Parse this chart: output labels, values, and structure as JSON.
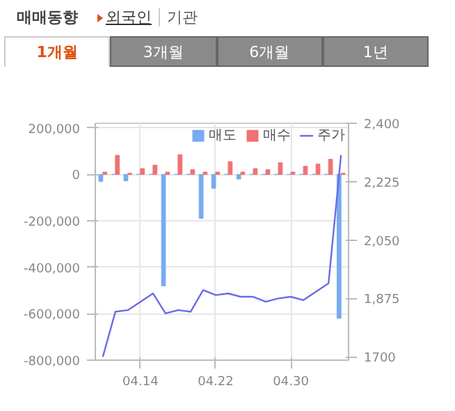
{
  "chart_data": {
    "type": "bar",
    "title": "매매동향",
    "annotations": [
      "외국인",
      "기관",
      "1개월",
      "3개월",
      "6개월",
      "1년"
    ],
    "categories": [
      null,
      null,
      null,
      "04.14",
      null,
      null,
      null,
      null,
      null,
      "04.22",
      null,
      null,
      null,
      null,
      null,
      "04.30",
      null,
      null,
      null,
      null
    ],
    "series": [
      {
        "name": "매도",
        "color": "#78aaf0",
        "values": [
          -30000,
          0,
          -28000,
          0,
          0,
          -480000,
          0,
          0,
          -190000,
          -60000,
          0,
          -20000,
          0,
          0,
          0,
          0,
          0,
          0,
          0,
          -620000
        ]
      },
      {
        "name": "매수",
        "color": "#f07272",
        "values": [
          10000,
          82000,
          5000,
          25000,
          40000,
          10000,
          85000,
          20000,
          10000,
          10000,
          55000,
          10000,
          25000,
          20000,
          50000,
          10000,
          35000,
          45000,
          65000,
          5000
        ]
      },
      {
        "name": "주가",
        "type": "line",
        "axis": "y2",
        "color": "#6b6be6",
        "values": [
          1700,
          1835,
          1840,
          1865,
          1890,
          1830,
          1840,
          1835,
          1900,
          1885,
          1890,
          1880,
          1880,
          1865,
          1875,
          1880,
          1870,
          1895,
          1920,
          2305
        ]
      }
    ],
    "ylim": [
      -800000,
      220000
    ],
    "yticks": [
      {
        "value": -800000,
        "label": "-800,000"
      },
      {
        "value": -600000,
        "label": "-600,000"
      },
      {
        "value": -400000,
        "label": "-400,000"
      },
      {
        "value": -200000,
        "label": "-200,000"
      },
      {
        "value": 0,
        "label": "0"
      },
      {
        "value": 200000,
        "label": "200,000"
      }
    ],
    "y2lim": [
      1690,
      2400
    ],
    "y2ticks": [
      1700,
      {
        "value": 1875,
        "label": "1,875"
      },
      {
        "value": 2050,
        "label": "2,050"
      },
      {
        "value": 2225,
        "label": "2,225"
      },
      {
        "value": 2400,
        "label": "2,400"
      }
    ],
    "grid": true,
    "legend": "top right"
  }
}
